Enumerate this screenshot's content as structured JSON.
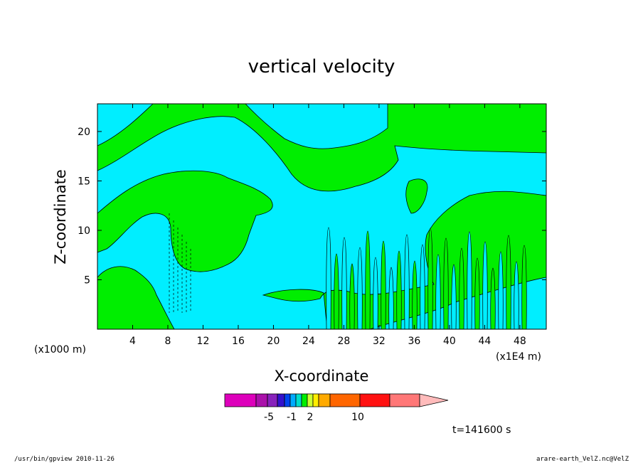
{
  "chart_data": {
    "type": "contour",
    "title": "vertical velocity",
    "xlabel": "X-coordinate",
    "ylabel": "Z-coordinate",
    "x_axis": {
      "ticks": [
        4,
        8,
        12,
        16,
        20,
        24,
        28,
        32,
        36,
        40,
        44,
        48
      ],
      "range": [
        0,
        51
      ],
      "unit_left": "(x1000 m)",
      "unit_right": "(x1E4 m)"
    },
    "y_axis": {
      "ticks": [
        5,
        10,
        15,
        20
      ],
      "range": [
        0,
        22.8
      ]
    },
    "fill_colors": {
      "positive": "#00ee00",
      "negative": "#00eeff"
    },
    "colorbar": {
      "colors": [
        "#dd00bb",
        "#aa11aa",
        "#8822bb",
        "#3311cc",
        "#0044ee",
        "#00aaff",
        "#00ddcc",
        "#00ee00",
        "#ccff33",
        "#ffee00",
        "#ffaa00",
        "#ff6600",
        "#ff1111",
        "#ff7777",
        "#ffbbbb"
      ],
      "label_values": [
        "-5",
        "-1",
        "2",
        "10"
      ]
    },
    "time_label": "t=141600 s"
  },
  "footer": {
    "left": "/usr/bin/gpview   2010-11-26",
    "right": "arare-earth_VelZ.nc@VelZ"
  }
}
